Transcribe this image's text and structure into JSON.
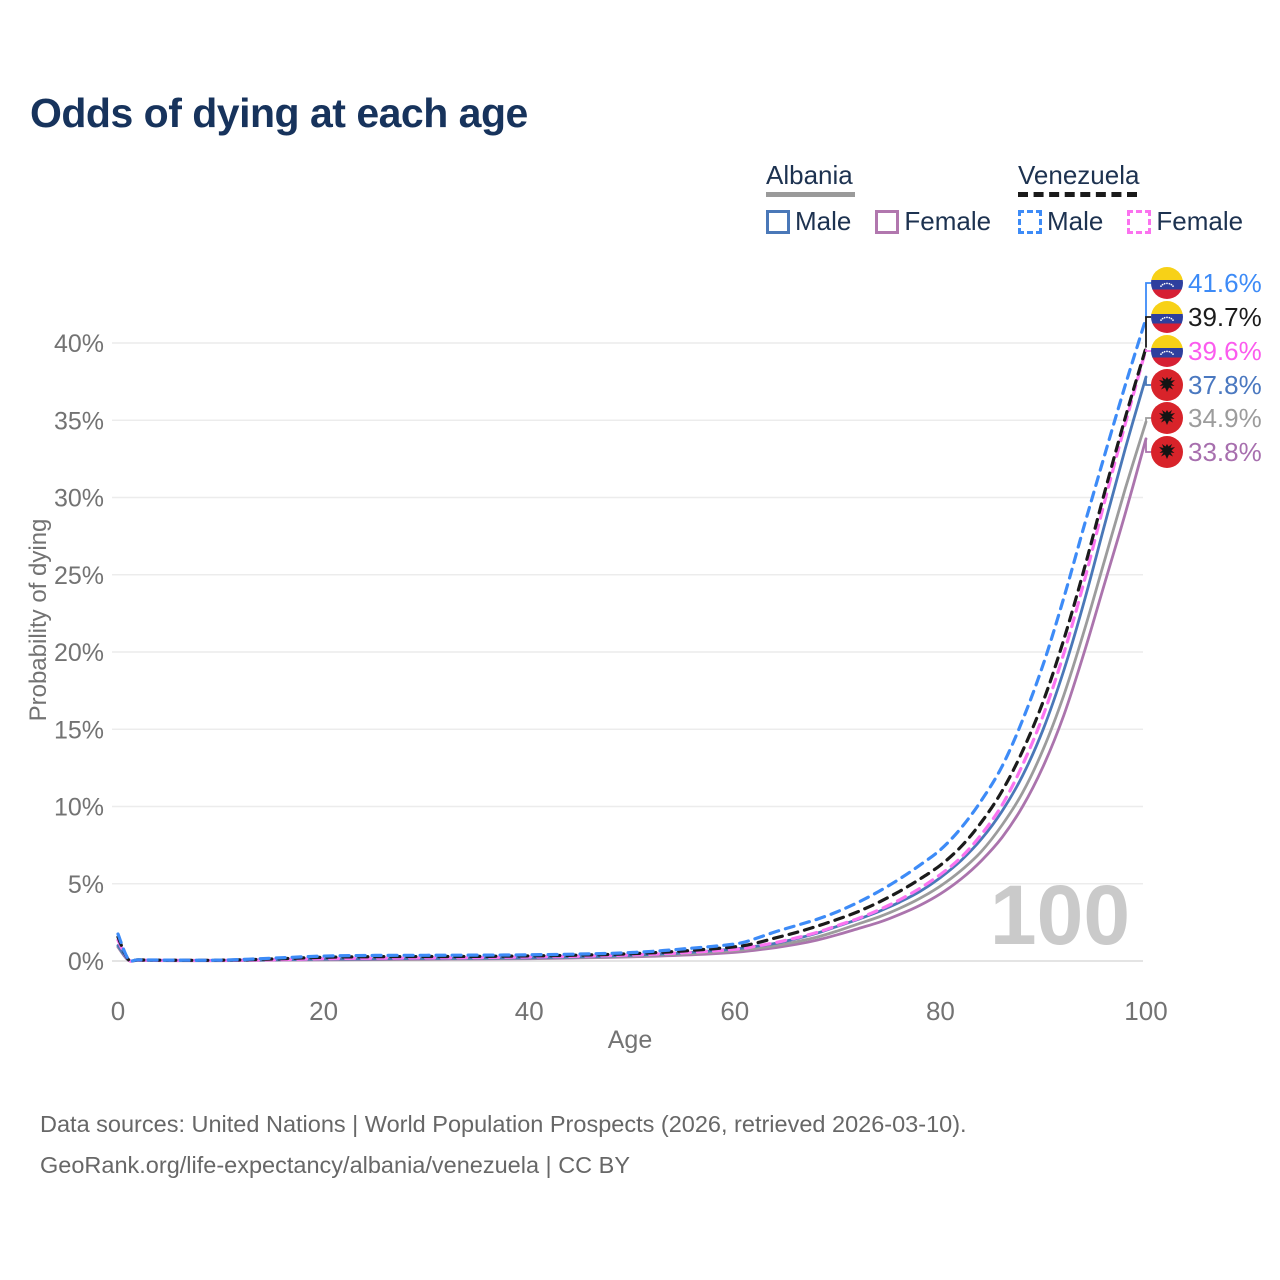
{
  "title": "Odds of dying at each age",
  "legend": {
    "groups": [
      {
        "name": "Albania",
        "style": "solid",
        "items": [
          {
            "label": "Male"
          },
          {
            "label": "Female"
          }
        ]
      },
      {
        "name": "Venezuela",
        "style": "dashed",
        "items": [
          {
            "label": "Male"
          },
          {
            "label": "Female"
          }
        ]
      }
    ]
  },
  "footer": {
    "line1": "Data sources: United Nations | World Population Prospects (2026, retrieved 2026-03-10).",
    "line2": "GeoRank.org/life-expectancy/albania/venezuela | CC BY"
  },
  "chart_data": {
    "type": "line",
    "title": "Odds of dying at each age",
    "xlabel": "Age",
    "ylabel": "Probability of dying",
    "xlim": [
      0,
      100
    ],
    "ylim_percent": [
      0,
      43
    ],
    "x_ticks": [
      0,
      20,
      40,
      60,
      80,
      100
    ],
    "y_ticks_percent": [
      0,
      5,
      10,
      15,
      20,
      25,
      30,
      35,
      40
    ],
    "grid": true,
    "legend_position": "top-right",
    "age_indicator": "100",
    "x": [
      0,
      1,
      2,
      5,
      10,
      15,
      20,
      25,
      30,
      35,
      40,
      45,
      50,
      55,
      60,
      62,
      64,
      66,
      68,
      70,
      72,
      74,
      76,
      78,
      80,
      82,
      84,
      86,
      88,
      90,
      92,
      94,
      96,
      98,
      100
    ],
    "series": [
      {
        "name": "Albania Female",
        "country": "Albania",
        "sex": "female",
        "color": "#ab74ad",
        "label_color": "#a76fae",
        "dashed": false,
        "flag": "al",
        "end_label": "33.8%",
        "values": [
          0.9,
          0.05,
          0.03,
          0.02,
          0.02,
          0.05,
          0.08,
          0.09,
          0.11,
          0.13,
          0.15,
          0.2,
          0.27,
          0.38,
          0.56,
          0.7,
          0.87,
          1.08,
          1.35,
          1.7,
          2.1,
          2.5,
          3.0,
          3.6,
          4.35,
          5.3,
          6.5,
          8.0,
          10.0,
          12.6,
          15.9,
          20.0,
          24.5,
          29.0,
          33.8
        ]
      },
      {
        "name": "Albania Total",
        "country": "Albania",
        "sex": "both",
        "color": "#9c9c9c",
        "label_color": "#9c9c9c",
        "dashed": false,
        "flag": "al",
        "end_label": "34.9%",
        "values": [
          0.95,
          0.06,
          0.04,
          0.03,
          0.03,
          0.06,
          0.1,
          0.12,
          0.13,
          0.15,
          0.18,
          0.23,
          0.32,
          0.45,
          0.67,
          0.82,
          1.0,
          1.25,
          1.55,
          1.95,
          2.4,
          2.85,
          3.4,
          4.05,
          4.85,
          5.85,
          7.1,
          8.8,
          10.9,
          13.7,
          17.2,
          21.4,
          26.0,
          30.6,
          34.9
        ]
      },
      {
        "name": "Albania Male",
        "country": "Albania",
        "sex": "male",
        "color": "#4a78b8",
        "label_color": "#4a78c0",
        "dashed": false,
        "flag": "al",
        "end_label": "37.8%",
        "values": [
          1.0,
          0.07,
          0.04,
          0.03,
          0.03,
          0.07,
          0.12,
          0.14,
          0.16,
          0.18,
          0.21,
          0.27,
          0.37,
          0.53,
          0.78,
          0.95,
          1.15,
          1.45,
          1.8,
          2.25,
          2.7,
          3.2,
          3.8,
          4.5,
          5.4,
          6.5,
          7.9,
          9.7,
          12.0,
          15.0,
          18.8,
          23.3,
          28.3,
          33.2,
          37.8
        ]
      },
      {
        "name": "Venezuela Female",
        "country": "Venezuela",
        "sex": "female",
        "color": "#fb74f0",
        "label_color": "#fb5bee",
        "dashed": true,
        "flag": "ve",
        "end_label": "39.6%",
        "values": [
          1.35,
          0.09,
          0.06,
          0.04,
          0.04,
          0.08,
          0.15,
          0.18,
          0.2,
          0.22,
          0.26,
          0.31,
          0.39,
          0.53,
          0.75,
          0.95,
          1.2,
          1.5,
          1.85,
          2.3,
          2.75,
          3.3,
          3.95,
          4.7,
          5.6,
          6.7,
          8.2,
          10.1,
          12.7,
          15.9,
          19.9,
          24.6,
          29.8,
          34.8,
          39.6
        ]
      },
      {
        "name": "Venezuela Total",
        "country": "Venezuela",
        "sex": "both",
        "color": "#1b1b1b",
        "label_color": "#1b1b1b",
        "dashed": true,
        "flag": "ve",
        "end_label": "39.7%",
        "values": [
          1.55,
          0.1,
          0.07,
          0.05,
          0.05,
          0.13,
          0.24,
          0.28,
          0.29,
          0.3,
          0.33,
          0.38,
          0.47,
          0.65,
          0.92,
          1.15,
          1.5,
          1.85,
          2.25,
          2.7,
          3.2,
          3.8,
          4.5,
          5.3,
          6.2,
          7.4,
          9.0,
          11.0,
          13.6,
          16.8,
          20.8,
          25.4,
          30.4,
          35.2,
          39.7
        ]
      },
      {
        "name": "Venezuela Male",
        "country": "Venezuela",
        "sex": "male",
        "color": "#3d8bf7",
        "label_color": "#3d8bf7",
        "dashed": true,
        "flag": "ve",
        "end_label": "41.6%",
        "values": [
          1.75,
          0.12,
          0.08,
          0.06,
          0.06,
          0.18,
          0.32,
          0.36,
          0.37,
          0.38,
          0.4,
          0.45,
          0.55,
          0.78,
          1.1,
          1.45,
          1.9,
          2.3,
          2.7,
          3.2,
          3.8,
          4.5,
          5.3,
          6.2,
          7.2,
          8.6,
          10.4,
          12.6,
          15.6,
          19.2,
          23.5,
          28.2,
          32.8,
          37.3,
          41.6
        ]
      }
    ],
    "colors": {
      "grid": "#ececec",
      "grid_zero": "#dcdcdc",
      "tick_text": "#737373",
      "watermark": "#cacaca",
      "title": "#17335c",
      "flag_ve_yellow": "#f7d117",
      "flag_ve_blue": "#2e3f9e",
      "flag_ve_red": "#d62034",
      "flag_al_red": "#d8232a",
      "flag_al_eagle": "#141414"
    }
  }
}
